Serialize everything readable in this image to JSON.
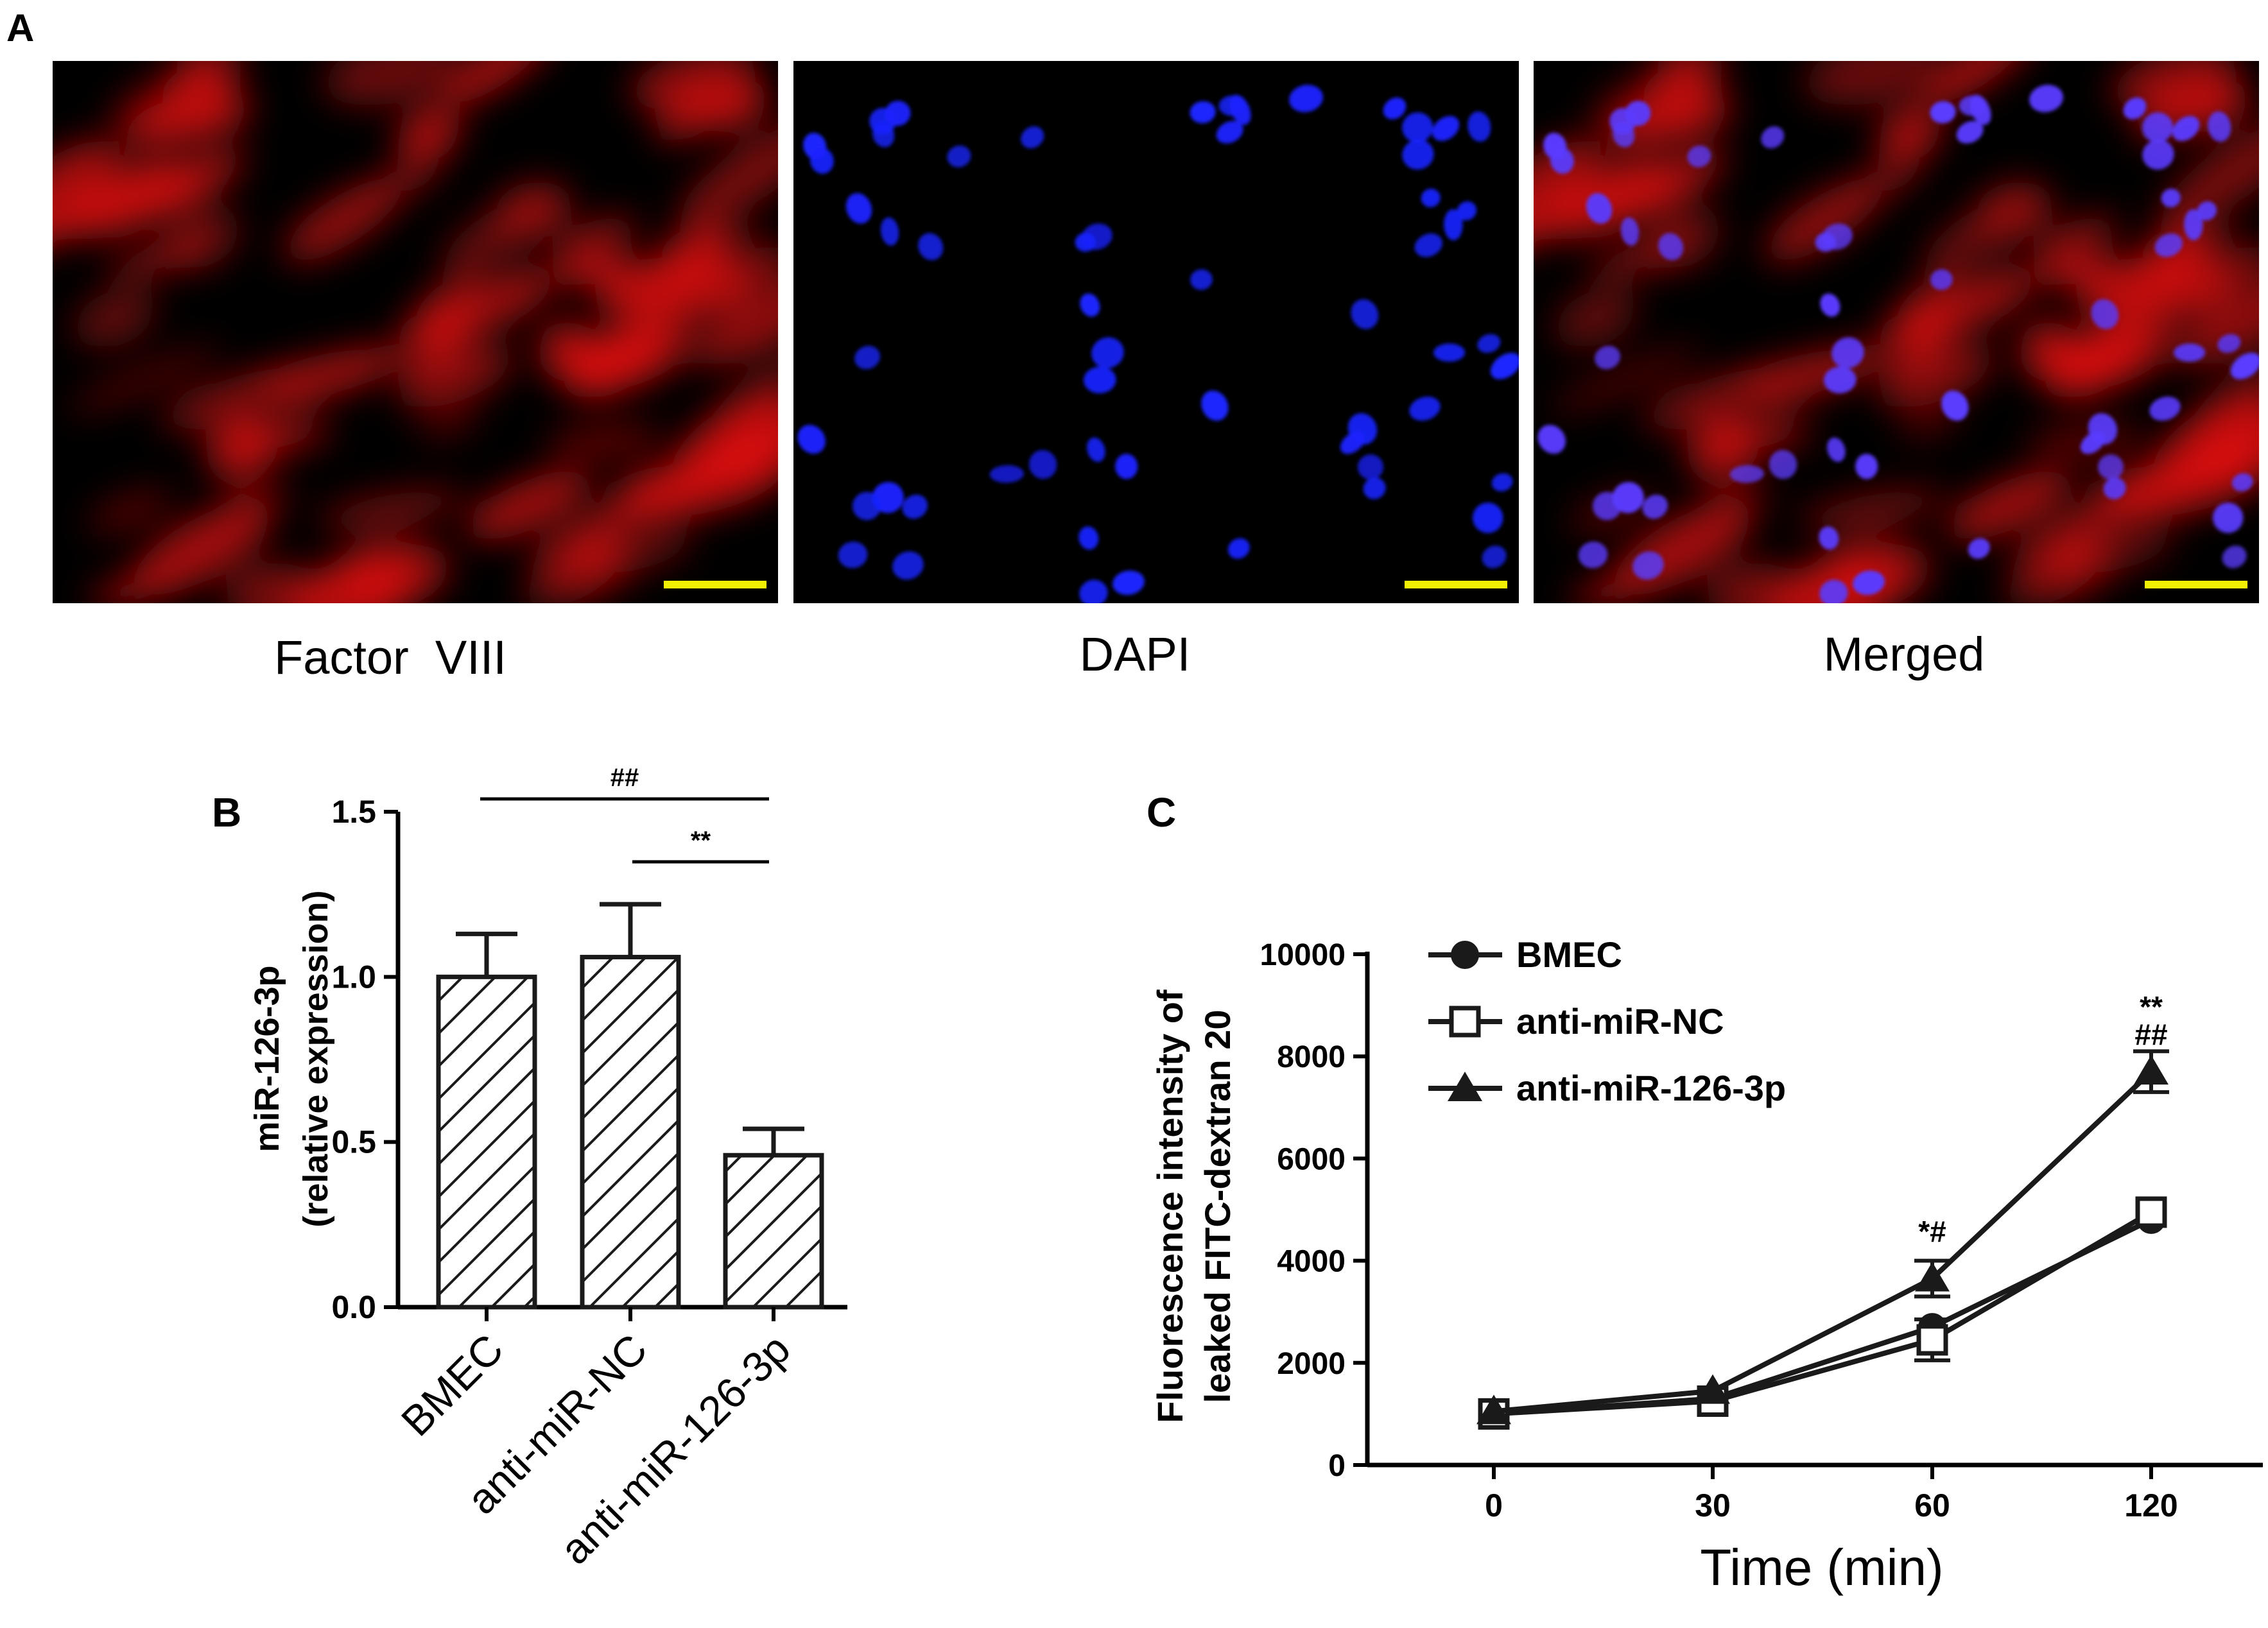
{
  "figure": {
    "panel_a": {
      "letter": "A",
      "images": [
        {
          "caption": "Factor  VIII",
          "channel": "red"
        },
        {
          "caption": "DAPI",
          "channel": "blue"
        },
        {
          "caption": "Merged",
          "channel": "merged"
        }
      ],
      "colors": {
        "red": "#e01010",
        "blue": "#1a24ff",
        "scalebar": "#f0f000",
        "background": "#000000"
      }
    },
    "panel_b": {
      "letter": "B"
    },
    "panel_c": {
      "letter": "C"
    }
  },
  "chart_data": [
    {
      "panel": "B",
      "type": "bar",
      "categories": [
        "BMEC",
        "anti-miR-NC",
        "anti-miR-126-3p"
      ],
      "values": [
        1.0,
        1.06,
        0.46
      ],
      "errors": [
        0.13,
        0.16,
        0.08
      ],
      "ylabel_line1": "miR-126-3p",
      "ylabel_line2": "(relative expression)",
      "ylim": [
        0,
        1.5
      ],
      "yticks": [
        "0.0",
        "0.5",
        "1.0",
        "1.5"
      ],
      "fill": "hatched",
      "significance": [
        {
          "from": 0,
          "to": 2,
          "label": "##"
        },
        {
          "from": 1,
          "to": 2,
          "label": "**"
        }
      ]
    },
    {
      "panel": "C",
      "type": "line",
      "x": [
        0,
        30,
        60,
        120
      ],
      "xticks": [
        "0",
        "30",
        "60",
        "120"
      ],
      "xlabel": "Time (min)",
      "ylabel_line1": "Fluorescence intensity of",
      "ylabel_line2": "leaked FITC-dextran 20",
      "ylim": [
        0,
        10000
      ],
      "yticks": [
        "0",
        "2000",
        "4000",
        "6000",
        "8000",
        "10000"
      ],
      "legend_position": "top-left",
      "series": [
        {
          "name": "BMEC",
          "marker": "circle",
          "values": [
            1000,
            1300,
            2700,
            4800
          ],
          "errors": [
            80,
            100,
            150,
            100
          ]
        },
        {
          "name": "anti-miR-NC",
          "marker": "square",
          "values": [
            1000,
            1250,
            2450,
            4950
          ],
          "errors": [
            80,
            100,
            400,
            150
          ]
        },
        {
          "name": "anti-miR-126-3p",
          "marker": "triangle",
          "values": [
            1050,
            1450,
            3650,
            7700
          ],
          "errors": [
            80,
            100,
            350,
            400
          ]
        }
      ],
      "annotations": [
        {
          "x": 60,
          "label": "*#"
        },
        {
          "x": 120,
          "label": "**"
        },
        {
          "x": 120,
          "label": "##"
        }
      ]
    }
  ]
}
